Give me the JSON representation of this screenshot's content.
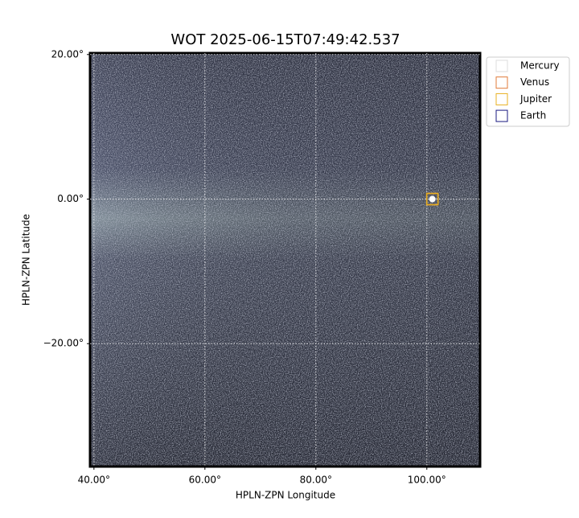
{
  "chart_data": {
    "type": "image",
    "title": "WOT 2025-06-15T07:49:42.537",
    "xlabel": "HPLN-ZPN Longitude",
    "ylabel": "HPLN-ZPN Latitude",
    "xlim": [
      39.3,
      109.6
    ],
    "ylim": [
      -37.0,
      20.2
    ],
    "xticks": [
      {
        "value": 40,
        "label": "40.00°"
      },
      {
        "value": 60,
        "label": "60.00°"
      },
      {
        "value": 80,
        "label": "80.00°"
      },
      {
        "value": 100,
        "label": "100.00°"
      }
    ],
    "yticks": [
      {
        "value": 20,
        "label": "20.00°"
      },
      {
        "value": 0,
        "label": "0.00°"
      },
      {
        "value": -20,
        "label": "−20.00°"
      }
    ],
    "grid": true,
    "legend": "upper right",
    "series": [
      {
        "name": "Mercury",
        "color": "#dddddd"
      },
      {
        "name": "Venus",
        "color": "#e07b39",
        "x": [
          101.0
        ],
        "y": [
          0.0
        ]
      },
      {
        "name": "Jupiter",
        "color": "#e8b020",
        "x": [
          101.0
        ],
        "y": [
          0.0
        ]
      },
      {
        "name": "Earth",
        "color": "#1a1a80"
      }
    ]
  }
}
